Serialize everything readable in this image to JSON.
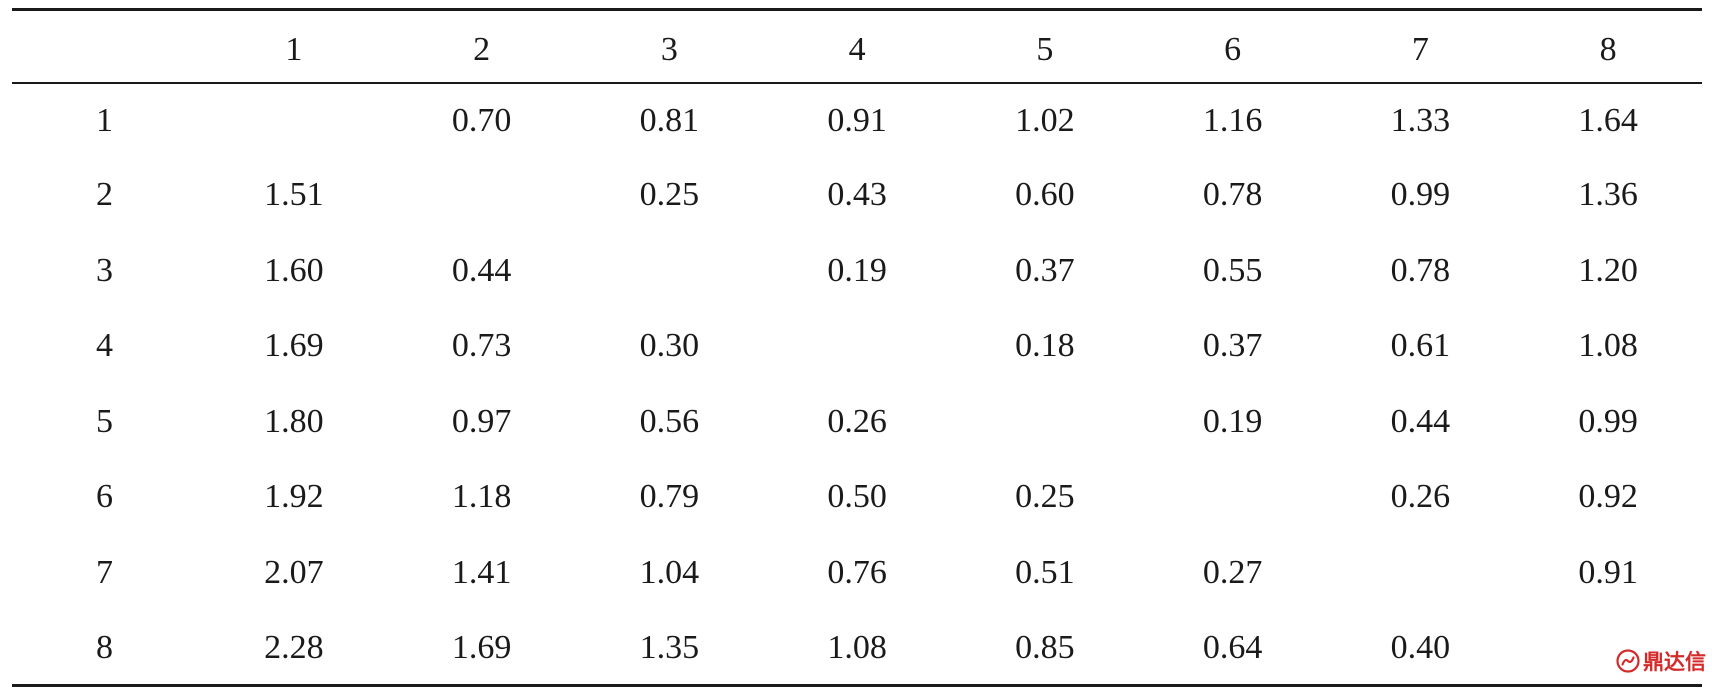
{
  "table": {
    "column_headers": [
      "",
      "1",
      "2",
      "3",
      "4",
      "5",
      "6",
      "7",
      "8"
    ],
    "rows": [
      {
        "label": "1",
        "cells": [
          "",
          "0.70",
          "0.81",
          "0.91",
          "1.02",
          "1.16",
          "1.33",
          "1.64"
        ]
      },
      {
        "label": "2",
        "cells": [
          "1.51",
          "",
          "0.25",
          "0.43",
          "0.60",
          "0.78",
          "0.99",
          "1.36"
        ]
      },
      {
        "label": "3",
        "cells": [
          "1.60",
          "0.44",
          "",
          "0.19",
          "0.37",
          "0.55",
          "0.78",
          "1.20"
        ]
      },
      {
        "label": "4",
        "cells": [
          "1.69",
          "0.73",
          "0.30",
          "",
          "0.18",
          "0.37",
          "0.61",
          "1.08"
        ]
      },
      {
        "label": "5",
        "cells": [
          "1.80",
          "0.97",
          "0.56",
          "0.26",
          "",
          "0.19",
          "0.44",
          "0.99"
        ]
      },
      {
        "label": "6",
        "cells": [
          "1.92",
          "1.18",
          "0.79",
          "0.50",
          "0.25",
          "",
          "0.26",
          "0.92"
        ]
      },
      {
        "label": "7",
        "cells": [
          "2.07",
          "1.41",
          "1.04",
          "0.76",
          "0.51",
          "0.27",
          "",
          "0.91"
        ]
      },
      {
        "label": "8",
        "cells": [
          "2.28",
          "1.69",
          "1.35",
          "1.08",
          "0.85",
          "0.64",
          "0.40",
          ""
        ]
      }
    ]
  },
  "watermark": {
    "text": "鼎达信",
    "icon": "watermark-logo-icon",
    "color": "#d42a2a"
  }
}
